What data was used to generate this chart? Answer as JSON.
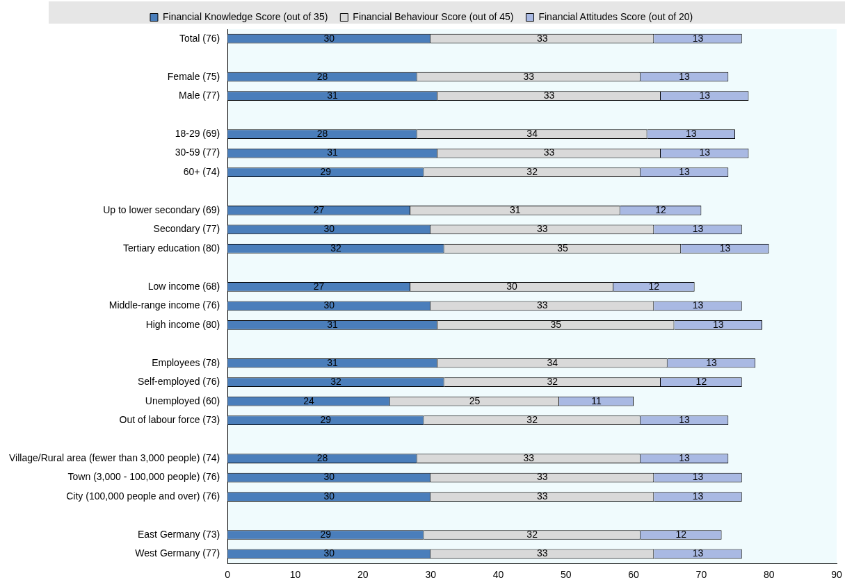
{
  "chart_data": {
    "type": "bar",
    "orientation": "horizontal",
    "stacked": true,
    "data_labels": true,
    "grid": false,
    "legend": "top",
    "categories": [
      "Total (76)",
      null,
      "Female (75)",
      "Male (77)",
      null,
      "18-29 (69)",
      "30-59 (77)",
      "60+ (74)",
      null,
      "Up to lower secondary (69)",
      "Secondary (77)",
      "Tertiary education (80)",
      null,
      "Low income (68)",
      "Middle-range income (76)",
      "High income (80)",
      null,
      "Employees (78)",
      "Self-employed (76)",
      "Unemployed (60)",
      "Out of labour force (73)",
      null,
      "Village/Rural area (fewer than 3,000 people) (74)",
      "Town (3,000 - 100,000 people) (76)",
      "City (100,000 people and over) (76)",
      null,
      "East Germany (73)",
      "West Germany (77)"
    ],
    "series": [
      {
        "name": "Financial Knowledge Score (out of 35)",
        "color": "#4a7ebb",
        "values": [
          30,
          null,
          28,
          31,
          null,
          28,
          31,
          29,
          null,
          27,
          30,
          32,
          null,
          27,
          30,
          31,
          null,
          31,
          32,
          24,
          29,
          null,
          28,
          30,
          30,
          null,
          29,
          30
        ]
      },
      {
        "name": "Financial Behaviour Score (out of 45)",
        "color": "#d9d9d9",
        "values": [
          33,
          null,
          33,
          33,
          null,
          34,
          33,
          32,
          null,
          31,
          33,
          35,
          null,
          30,
          33,
          35,
          null,
          34,
          32,
          25,
          32,
          null,
          33,
          33,
          33,
          null,
          32,
          33
        ]
      },
      {
        "name": "Financial Attitudes Score (out of 20)",
        "color": "#a9b9e3",
        "values": [
          13,
          null,
          13,
          13,
          null,
          13,
          13,
          13,
          null,
          12,
          13,
          13,
          null,
          12,
          13,
          13,
          null,
          13,
          12,
          11,
          13,
          null,
          13,
          13,
          13,
          null,
          12,
          13
        ]
      }
    ],
    "xlim": [
      0,
      90
    ],
    "xticks": [
      0,
      10,
      20,
      30,
      40,
      50,
      60,
      70,
      80,
      90
    ]
  }
}
